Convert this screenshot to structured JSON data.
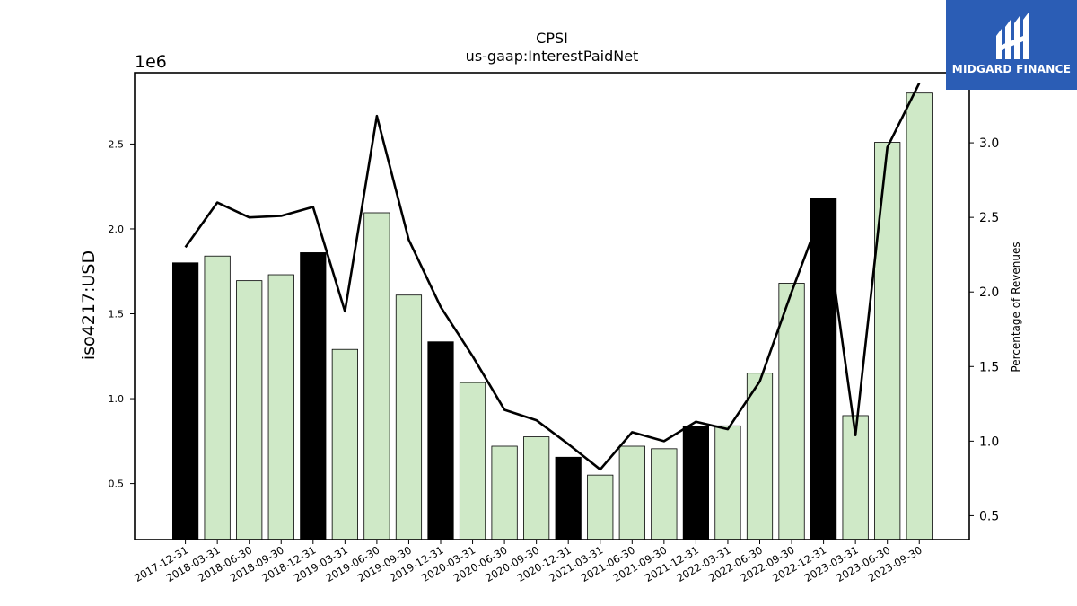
{
  "chart_data": {
    "type": "bar",
    "title": "CPSI",
    "subtitle": "us-gaap:InterestPaidNet",
    "ylabel": "iso4217:USD",
    "y_offset_label": "1e6",
    "y2label": "Percentage of Revenues",
    "ylim": [
      170000,
      2920000
    ],
    "y2lim": [
      0.34,
      3.47
    ],
    "yticks": [
      "0.5",
      "1.0",
      "1.5",
      "2.0",
      "2.5"
    ],
    "y2ticks": [
      "0.5",
      "1.0",
      "1.5",
      "2.0",
      "2.5",
      "3.0"
    ],
    "categories": [
      "2017-12-31",
      "2018-03-31",
      "2018-06-30",
      "2018-09-30",
      "2018-12-31",
      "2019-03-31",
      "2019-06-30",
      "2019-09-30",
      "2019-12-31",
      "2020-03-31",
      "2020-06-30",
      "2020-09-30",
      "2020-12-31",
      "2021-03-31",
      "2021-06-30",
      "2021-09-30",
      "2021-12-31",
      "2022-03-31",
      "2022-06-30",
      "2022-09-30",
      "2022-12-31",
      "2023-03-31",
      "2023-06-30",
      "2023-09-30"
    ],
    "series": [
      {
        "kind": "bar",
        "values": [
          1800000,
          1840000,
          1695000,
          1730000,
          1860000,
          1290000,
          2095000,
          1610000,
          1335000,
          1095000,
          720000,
          775000,
          655000,
          550000,
          720000,
          705000,
          835000,
          840000,
          1150000,
          1680000,
          2180000,
          900000,
          2510000,
          2800000
        ],
        "annual_flags": [
          true,
          false,
          false,
          false,
          true,
          false,
          false,
          false,
          true,
          false,
          false,
          false,
          true,
          false,
          false,
          false,
          true,
          false,
          false,
          false,
          true,
          false,
          false,
          false
        ]
      },
      {
        "kind": "line",
        "axis": "right",
        "values": [
          2.3,
          2.6,
          2.5,
          2.51,
          2.57,
          1.87,
          3.18,
          2.35,
          1.9,
          1.57,
          1.21,
          1.14,
          0.98,
          0.81,
          1.06,
          1.0,
          1.13,
          1.08,
          1.4,
          2.0,
          2.57,
          1.04,
          2.97,
          3.4
        ]
      }
    ],
    "colors": {
      "annual_bar": "#000000",
      "quarter_bar": "#cfe9c7",
      "bar_edge": "#000000",
      "line": "#000000"
    }
  },
  "logo": {
    "name": "MIDGARD FINANCE",
    "bg": "#2b5db5"
  }
}
